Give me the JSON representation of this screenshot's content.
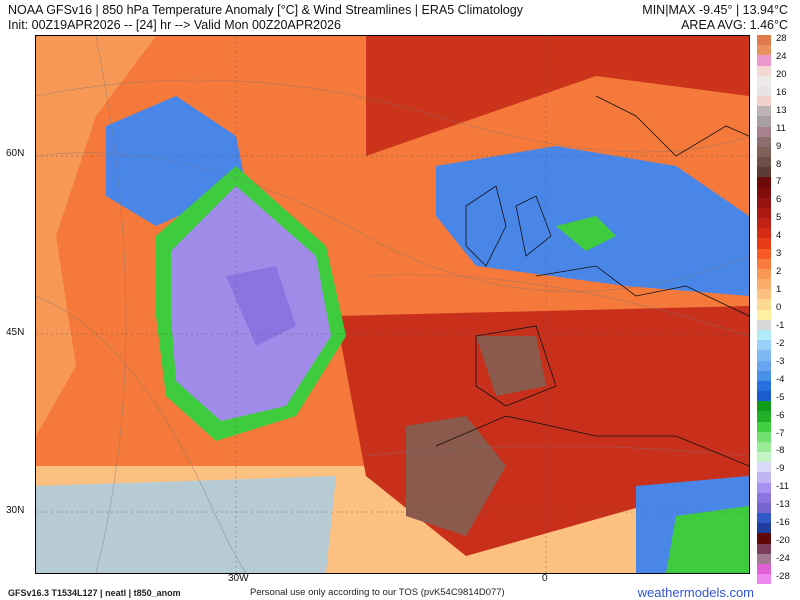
{
  "header": {
    "title": "NOAA GFSv16 | 850 hPa Temperature Anomaly [°C] & Wind Streamlines | ERA5 Climatology",
    "init": "Init: 00Z19APR2026 -- [24] hr --> Valid Mon 00Z20APR2026",
    "minmax": "MIN|MAX -9.45° | 13.94°C",
    "area_avg": "AREA AVG: 1.46°C"
  },
  "map": {
    "lat_labels": [
      "60N",
      "45N",
      "30N"
    ],
    "lon_labels": [
      "30W",
      "0"
    ],
    "colors": {
      "bg": "#f4793a",
      "warm": "#c8301c",
      "hot": "#8a5a4c",
      "cold": "#4a86e8",
      "green": "#3ecc3e",
      "purple": "#a08ce8",
      "light": "#d8dee8"
    }
  },
  "colorbar": {
    "labels": [
      "28",
      "24",
      "20",
      "16",
      "13",
      "11",
      "9",
      "8",
      "7",
      "6",
      "5",
      "4",
      "3",
      "2",
      "1",
      "0",
      "-1",
      "-2",
      "-3",
      "-4",
      "-5",
      "-6",
      "-7",
      "-8",
      "-9",
      "-11",
      "-13",
      "-16",
      "-20",
      "-24",
      "-28"
    ],
    "bins": [
      "#e07a4a",
      "#e8905e",
      "#ee98d0",
      "#f2d8d0",
      "#eeeaea",
      "#e8e4e4",
      "#f0d0c8",
      "#bcb4b4",
      "#a8a0a0",
      "#a88090",
      "#8c7070",
      "#806058",
      "#6e5048",
      "#5c3c34",
      "#6e0a0a",
      "#800c0c",
      "#951210",
      "#aa1a12",
      "#c02214",
      "#d42c14",
      "#e83a14",
      "#f85a26",
      "#f87c40",
      "#f89856",
      "#faac6a",
      "#fcc080",
      "#fcd890",
      "#fef0a0",
      "#d8d8d8",
      "#b0ecf8",
      "#98d0f8",
      "#80b8f4",
      "#68a4f0",
      "#4890e8",
      "#2870e0",
      "#1a5cd0",
      "#109c18",
      "#20b028",
      "#40d040",
      "#70e070",
      "#98ec98",
      "#c4f4c4",
      "#d8d8f8",
      "#c0b4f4",
      "#a890f0",
      "#8c74e0",
      "#7464d0",
      "#3058c8",
      "#203c9c",
      "#600808",
      "#7c3c5c",
      "#a07890",
      "#e060d8",
      "#ee88ee"
    ]
  },
  "footer": {
    "tos": "Personal use only according to our TOS (pvK54C9814D077)",
    "model": "GFSv16.3 T1534L127 | neatl | t850_anom",
    "brand": "weathermodels.com"
  }
}
